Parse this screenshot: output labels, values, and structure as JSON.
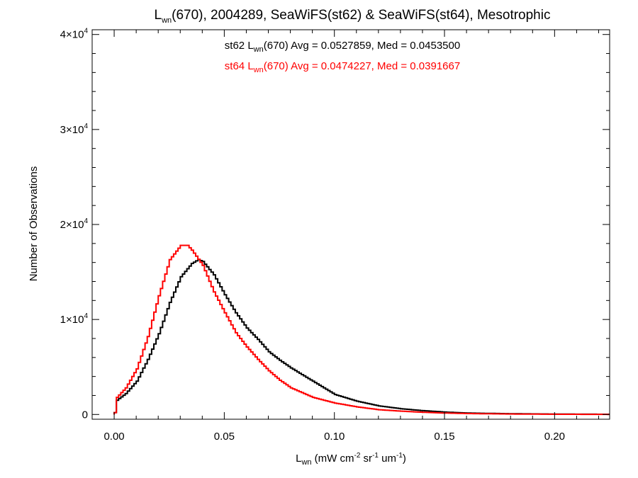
{
  "chart_data": {
    "type": "line",
    "title": {
      "main": "L",
      "main_sub": "wn",
      "rest": "(670), 2004289, SeaWiFS(st62) & SeaWiFS(st64), Mesotrophic"
    },
    "xlabel": {
      "main": "L",
      "main_sub": "wn",
      "p1": " (mW cm",
      "p1_sup": "-2",
      "p2": " sr",
      "p2_sup": "-1",
      "p3": " um",
      "p3_sup": "-1",
      "p4": ")"
    },
    "ylabel": "Number of Observations",
    "xlim": [
      -0.01,
      0.225
    ],
    "ylim": [
      -500,
      40500
    ],
    "x_ticks": [
      {
        "value": 0.0,
        "label": "0.00"
      },
      {
        "value": 0.05,
        "label": "0.05"
      },
      {
        "value": 0.1,
        "label": "0.10"
      },
      {
        "value": 0.15,
        "label": "0.15"
      },
      {
        "value": 0.2,
        "label": "0.20"
      }
    ],
    "y_ticks": [
      {
        "value": 0,
        "mant": "0",
        "exp": ""
      },
      {
        "value": 10000,
        "mant": "1×10",
        "exp": "4"
      },
      {
        "value": 20000,
        "mant": "2×10",
        "exp": "4"
      },
      {
        "value": 30000,
        "mant": "3×10",
        "exp": "4"
      },
      {
        "value": 40000,
        "mant": "4×10",
        "exp": "4"
      }
    ],
    "legend": [
      {
        "prefix": "st62 L",
        "sub": "wn",
        "suffix": "(670) Avg = 0.0527859, Med = 0.0453500",
        "color": "#000000"
      },
      {
        "prefix": "st64 L",
        "sub": "wn",
        "suffix": "(670) Avg = 0.0474227, Med = 0.0391667",
        "color": "#ff0000"
      }
    ],
    "legend_position": "top-center",
    "series": [
      {
        "name": "st62",
        "color": "#000000",
        "x": [
          0.0,
          0.001,
          0.005,
          0.01,
          0.015,
          0.02,
          0.025,
          0.03,
          0.035,
          0.038,
          0.04,
          0.045,
          0.05,
          0.055,
          0.06,
          0.065,
          0.07,
          0.075,
          0.08,
          0.085,
          0.09,
          0.095,
          0.1,
          0.11,
          0.12,
          0.13,
          0.14,
          0.15,
          0.16,
          0.18,
          0.2,
          0.225
        ],
        "values": [
          200,
          1500,
          2200,
          3500,
          5800,
          8500,
          11800,
          14500,
          15900,
          16300,
          16100,
          14700,
          12600,
          10700,
          9100,
          7900,
          6600,
          5700,
          4900,
          4200,
          3500,
          2800,
          2100,
          1400,
          900,
          600,
          400,
          250,
          150,
          80,
          40,
          20
        ]
      },
      {
        "name": "st64",
        "color": "#ff0000",
        "x": [
          0.0,
          0.001,
          0.005,
          0.01,
          0.015,
          0.02,
          0.025,
          0.03,
          0.033,
          0.035,
          0.04,
          0.045,
          0.05,
          0.055,
          0.06,
          0.065,
          0.07,
          0.075,
          0.08,
          0.085,
          0.09,
          0.095,
          0.1,
          0.11,
          0.12,
          0.13,
          0.14,
          0.15,
          0.16,
          0.18,
          0.2,
          0.225
        ],
        "values": [
          200,
          1800,
          2800,
          4800,
          8200,
          12500,
          16300,
          17800,
          17800,
          17300,
          15700,
          12900,
          10700,
          8600,
          7100,
          5800,
          4600,
          3600,
          2800,
          2300,
          1800,
          1500,
          1200,
          800,
          500,
          350,
          230,
          150,
          100,
          50,
          25,
          10
        ]
      }
    ]
  }
}
